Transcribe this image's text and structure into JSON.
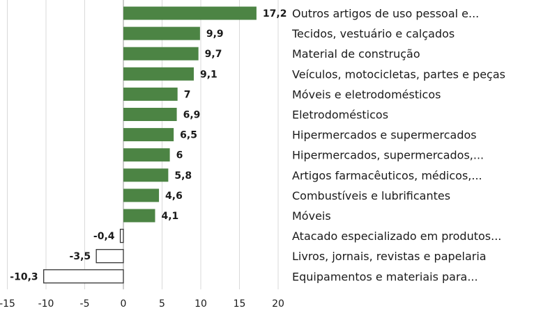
{
  "chart_data": {
    "type": "bar",
    "orientation": "horizontal",
    "title": "",
    "xlabel": "",
    "ylabel": "",
    "xlim": [
      -15,
      20
    ],
    "x_ticks": [
      -15,
      -10,
      -5,
      0,
      5,
      10,
      15,
      20
    ],
    "x_tick_labels": [
      "-15",
      "-10",
      "-5",
      "0",
      "5",
      "10",
      "15",
      "20"
    ],
    "grid": "vertical",
    "legend": "none",
    "positive_color": "#4c8444",
    "negative_fill": "#ffffff",
    "negative_stroke": "#333333",
    "categories": [
      "Outros artigos de uso pessoal e...",
      "Tecidos, vestuário e calçados",
      "Material de construção",
      "Veículos, motocicletas, partes e peças",
      "Móveis e eletrodomésticos",
      "Eletrodomésticos",
      "Hipermercados e supermercados",
      "Hipermercados, supermercados,...",
      "Artigos farmacêuticos, médicos,...",
      "Combustíveis e lubrificantes",
      "Móveis",
      "Atacado especializado em produtos...",
      "Livros, jornais, revistas e papelaria",
      "Equipamentos e materiais para..."
    ],
    "values": [
      17.2,
      9.9,
      9.7,
      9.1,
      7,
      6.9,
      6.5,
      6,
      5.8,
      4.6,
      4.1,
      -0.4,
      -3.5,
      -10.3
    ],
    "value_labels": [
      "17,2",
      "9,9",
      "9,7",
      "9,1",
      "7",
      "6,9",
      "6,5",
      "6",
      "5,8",
      "4,6",
      "4,1",
      "-0,4",
      "-3,5",
      "-10,3"
    ]
  }
}
